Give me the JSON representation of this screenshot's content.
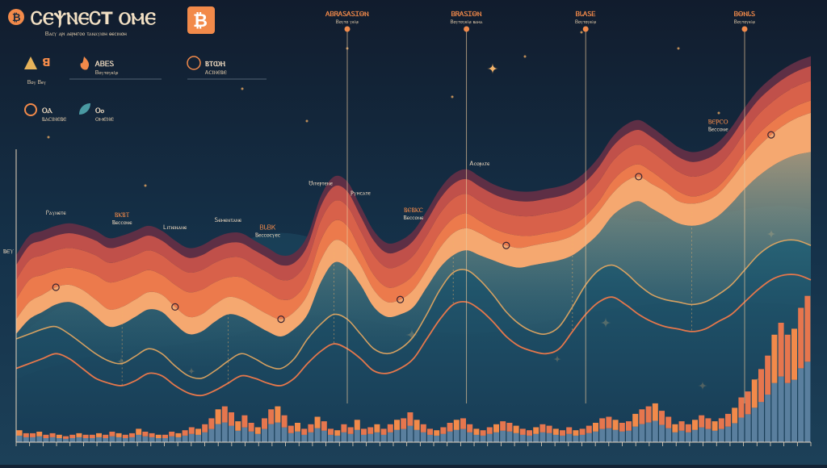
{
  "colors": {
    "background": "#132335",
    "accent": "#f28a4a",
    "band_deep": "#5e2f45",
    "band_red": "#c0504a",
    "band_orange": "#ec7a4c",
    "band_light": "#f5a870",
    "teal": "#2f6f82",
    "teal_light": "#4a9aa2",
    "line_orange": "#e5774b",
    "line_gold": "#e8a860",
    "bar_blue": "#5a7f9e",
    "text": "#e9d6bd"
  },
  "header": {
    "title": "ᏟⲈⲮⲚⲈᏟΤ ⲞⲘⲈ",
    "subtitle": "Ᏼⲁⲥⲩ ⲁⲣⲓ ⲁⲉⲣⲏⲅⲟⲟ ⲧⲁⲛⲁⲩⲓⲟⲏ ⲑⲉⲥⲓⲛⲟⲏ",
    "logo_icon": "bitcoin-icon"
  },
  "legend": {
    "items": [
      {
        "icon": "triangle-icon",
        "label": "ꓭ",
        "sublabel": "Ᏼⲟⲩ Ᏼⲉⲩ"
      },
      {
        "icon": "fire-icon",
        "label": "ᎪᏴᎬᏚ",
        "sublabel": "Ᏼⲟⲩⲧⲟⲩⲉⲗⲉ"
      },
      {
        "icon": "bitcoin-icon",
        "label": "ⲂⲦⲰⲎ",
        "sublabel": "ᎪⲤⲒⲚⲈⲂⲈ"
      },
      {
        "icon": "circle-icon",
        "label": "ⲞⲀ",
        "sublabel": "ⲂⲀⲤⲒⲚⲈⲂⲈ"
      },
      {
        "icon": "leaf-icon",
        "label": "Ⲟⲟ",
        "sublabel": "ⲞⲘⲈⲚⲈ"
      }
    ]
  },
  "chart_data": {
    "type": "area",
    "x_count": 61,
    "grid": false,
    "series": [
      {
        "values": [
          76,
          84,
          86,
          88,
          89,
          88,
          86,
          83,
          84,
          86,
          88,
          86,
          82,
          79,
          80,
          83,
          85,
          85,
          82,
          79,
          76,
          77,
          84,
          100,
          108,
          106,
          96,
          86,
          81,
          82,
          86,
          94,
          103,
          109,
          111,
          108,
          105,
          103,
          102,
          102,
          103,
          104,
          106,
          110,
          116,
          124,
          129,
          131,
          128,
          124,
          120,
          118,
          119,
          122,
          128,
          136,
          143,
          148,
          152,
          155,
          157
        ]
      },
      {
        "values": [
          72,
          80,
          82,
          84,
          85,
          84,
          82,
          79,
          80,
          82,
          84,
          82,
          78,
          75,
          76,
          79,
          81,
          81,
          78,
          75,
          72,
          73,
          80,
          96,
          104,
          102,
          92,
          82,
          77,
          78,
          82,
          90,
          99,
          105,
          107,
          104,
          101,
          99,
          98,
          98,
          99,
          100,
          102,
          106,
          112,
          120,
          125,
          127,
          124,
          120,
          116,
          114,
          115,
          118,
          124,
          132,
          139,
          144,
          148,
          151,
          153
        ]
      },
      {
        "values": [
          66,
          74,
          76,
          78,
          79,
          78,
          76,
          73,
          74,
          76,
          78,
          76,
          72,
          69,
          70,
          73,
          75,
          75,
          72,
          69,
          66,
          67,
          74,
          90,
          98,
          96,
          86,
          76,
          71,
          72,
          76,
          84,
          93,
          99,
          101,
          98,
          95,
          93,
          92,
          92,
          93,
          94,
          96,
          100,
          106,
          114,
          119,
          121,
          118,
          114,
          110,
          108,
          109,
          112,
          118,
          126,
          133,
          138,
          142,
          145,
          147
        ]
      },
      {
        "values": [
          58,
          66,
          68,
          70,
          71,
          70,
          68,
          65,
          66,
          68,
          70,
          68,
          64,
          61,
          62,
          65,
          67,
          67,
          64,
          61,
          58,
          59,
          66,
          82,
          90,
          88,
          78,
          68,
          63,
          64,
          68,
          76,
          85,
          91,
          93,
          90,
          87,
          85,
          84,
          84,
          85,
          86,
          88,
          92,
          98,
          106,
          111,
          113,
          110,
          106,
          102,
          100,
          101,
          104,
          110,
          118,
          125,
          130,
          134,
          137,
          139
        ]
      },
      {
        "values": [
          50,
          57,
          60,
          63,
          64,
          62,
          58,
          54,
          55,
          58,
          61,
          60,
          55,
          51,
          52,
          56,
          59,
          58,
          55,
          52,
          50,
          53,
          60,
          74,
          82,
          80,
          72,
          62,
          57,
          58,
          62,
          70,
          79,
          85,
          87,
          85,
          82,
          80,
          79,
          80,
          81,
          82,
          84,
          88,
          94,
          101,
          106,
          108,
          105,
          102,
          98,
          97,
          98,
          101,
          107,
          114,
          120,
          125,
          129,
          132,
          134
        ]
      },
      {
        "values": [
          44,
          50,
          53,
          56,
          57,
          55,
          51,
          47,
          48,
          51,
          54,
          53,
          48,
          44,
          45,
          49,
          52,
          51,
          48,
          45,
          43,
          46,
          52,
          65,
          73,
          71,
          64,
          55,
          51,
          52,
          55,
          63,
          71,
          76,
          78,
          76,
          74,
          72,
          71,
          72,
          73,
          74,
          76,
          80,
          85,
          92,
          96,
          98,
          95,
          92,
          89,
          88,
          89,
          92,
          97,
          103,
          108,
          112,
          115,
          117,
          118
        ]
      },
      {
        "values": [
          42,
          44,
          46,
          47,
          44,
          40,
          36,
          33,
          32,
          35,
          38,
          36,
          31,
          27,
          26,
          29,
          33,
          36,
          34,
          31,
          30,
          34,
          42,
          48,
          52,
          50,
          44,
          38,
          36,
          38,
          43,
          52,
          62,
          69,
          70,
          66,
          60,
          53,
          48,
          45,
          44,
          47,
          55,
          64,
          70,
          72,
          69,
          64,
          60,
          58,
          57,
          56,
          57,
          60,
          64,
          70,
          76,
          80,
          82,
          82,
          80
        ]
      },
      {
        "values": [
          30,
          32,
          34,
          36,
          34,
          30,
          26,
          24,
          23,
          25,
          28,
          27,
          23,
          20,
          19,
          21,
          24,
          27,
          26,
          24,
          23,
          26,
          32,
          37,
          40,
          38,
          34,
          29,
          28,
          30,
          34,
          42,
          50,
          56,
          57,
          54,
          49,
          43,
          39,
          37,
          36,
          38,
          45,
          52,
          57,
          59,
          56,
          52,
          49,
          47,
          46,
          45,
          46,
          49,
          52,
          57,
          62,
          66,
          68,
          68,
          66
        ]
      }
    ],
    "bars": [
      8,
      6,
      6,
      7,
      5,
      6,
      5,
      4,
      5,
      6,
      5,
      5,
      6,
      5,
      7,
      6,
      5,
      6,
      9,
      7,
      6,
      5,
      5,
      7,
      6,
      8,
      10,
      9,
      12,
      16,
      22,
      24,
      20,
      14,
      18,
      13,
      10,
      16,
      22,
      24,
      18,
      11,
      13,
      9,
      12,
      17,
      14,
      9,
      8,
      12,
      10,
      15,
      9,
      10,
      12,
      9,
      12,
      15,
      16,
      20,
      15,
      12,
      9,
      8,
      10,
      13,
      15,
      16,
      12,
      9,
      8,
      10,
      12,
      14,
      13,
      11,
      9,
      8,
      10,
      12,
      11,
      9,
      8,
      10,
      8,
      9,
      11,
      13,
      16,
      17,
      15,
      13,
      14,
      19,
      22,
      24,
      26,
      21,
      17,
      12,
      14,
      12,
      15,
      18,
      16,
      14,
      16,
      19,
      23,
      30,
      34,
      42,
      49,
      58,
      72,
      80,
      72,
      76,
      90,
      98
    ],
    "annotations": [
      {
        "label": "Ꮅⲁⲩⲛⲉⲧⲉ",
        "x": 3
      },
      {
        "label": "ⲂⲔⲂⲦ\nⲂⲉⲥⲥⲟⲛⲉ",
        "x": 8
      },
      {
        "label": "Ꮮⲓⲧⲓⲉⲛⲁⲛⲉ",
        "x": 12
      },
      {
        "label": "Ꮪⲉⲙⲉⲛⲧⲁⲛⲉ",
        "x": 16
      },
      {
        "label": "ᏴᏓᏴᏦ\nⲂⲉⲥⲥⲟⲥⲩⲉⲥ",
        "x": 19
      },
      {
        "label": "Ꮜⲓⲧⲉⲣⲧⲉⲛⲉ",
        "x": 23
      },
      {
        "label": "Ⲣⲩⲏⲥⲁⲧⲉ",
        "x": 26
      },
      {
        "label": "ⲂⲈⲂⲔⲤ\nⲂⲉⲥⲥⲟⲛⲉ",
        "x": 30
      },
      {
        "label": "Ꭺⲥⲟⲣⲁⲧⲉ",
        "x": 35
      },
      {
        "label": "ⲂⲈⲢⲤⲞ\nⲂⲉⲥⲥⲟⲛⲉ",
        "x": 53
      }
    ],
    "top_labels": [
      {
        "label": "ᎪᏴᏒᎪᏚᎪᏚᏆᎾⲚ",
        "sublabel": "Ᏼⲟⲩⲧⲟ ⲩⲉⲗⲉ",
        "x": 25
      },
      {
        "label": "ᏴᏒᎪᏚᏆᎾⲚ",
        "sublabel": "Ᏼⲟⲩⲧⲟⲩⲉⲗⲉ ⲃⲁⲙⲁ",
        "x": 34
      },
      {
        "label": "ᏴᏓᎪᏚᎬ",
        "sublabel": "Ᏼⲟⲩⲧⲟⲩⲉⲗⲉ",
        "x": 43
      },
      {
        "label": "ᏴᎾⲚᏓᏚ",
        "sublabel": "Ᏼⲟⲩⲧⲟⲩⲉⲗⲉ",
        "x": 55
      }
    ],
    "y_axis_label": "ⲂⲈⲨ",
    "ylim": [
      0,
      170
    ]
  }
}
